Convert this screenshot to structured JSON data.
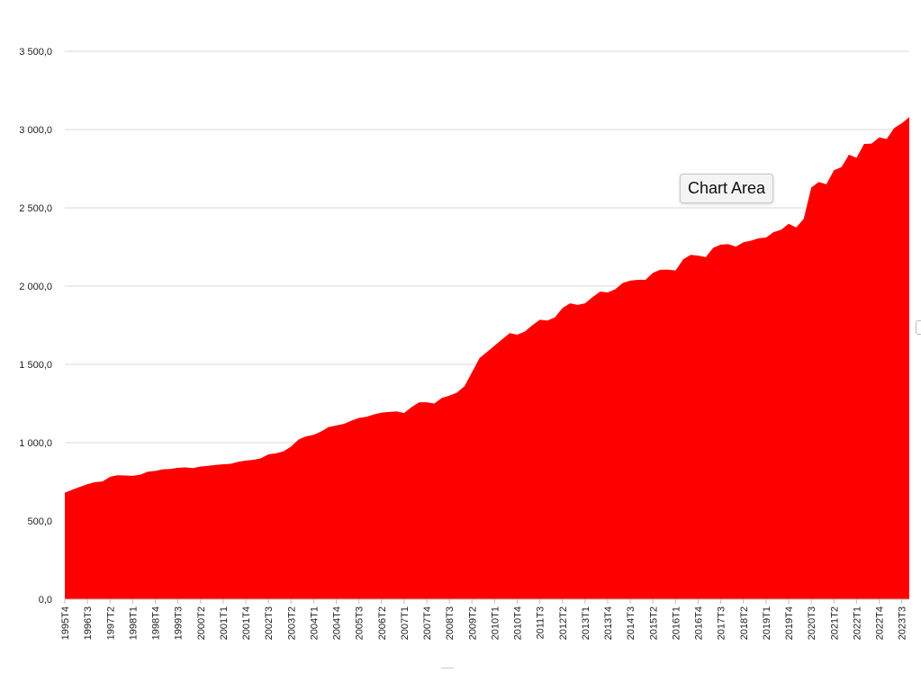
{
  "tooltip": {
    "label": "Chart Area"
  },
  "colors": {
    "area": "#ff0000",
    "grid": "#d9d9d9",
    "axis": "#bfbfbf"
  },
  "chart_data": {
    "type": "area",
    "title": "",
    "xlabel": "",
    "ylabel": "",
    "ylim": [
      0,
      3500
    ],
    "yticks": [
      0,
      500,
      1000,
      1500,
      2000,
      2500,
      3000,
      3500
    ],
    "ytick_labels": [
      "0,0",
      "500,0",
      "1 000,0",
      "1 500,0",
      "2 000,0",
      "2 500,0",
      "3 000,0",
      "3 500,0"
    ],
    "grid": true,
    "legend": "none",
    "x_tick_labels": [
      "1995T4",
      "1996T3",
      "1997T2",
      "1998T1",
      "1998T4",
      "1999T3",
      "2000T2",
      "2001T1",
      "2001T4",
      "2002T3",
      "2003T2",
      "2004T1",
      "2004T4",
      "2005T3",
      "2006T2",
      "2007T1",
      "2007T4",
      "2008T3",
      "2009T2",
      "2010T1",
      "2010T4",
      "2011T3",
      "2012T2",
      "2013T1",
      "2013T4",
      "2014T3",
      "2015T2",
      "2016T1",
      "2016T4",
      "2017T3",
      "2018T2",
      "2019T1",
      "2019T4",
      "2020T3",
      "2021T2",
      "2022T1",
      "2022T4",
      "2023T3"
    ],
    "series": [
      {
        "values": [
          680,
          700,
          718,
          735,
          748,
          752,
          782,
          792,
          790,
          788,
          795,
          815,
          820,
          830,
          832,
          840,
          842,
          838,
          848,
          852,
          858,
          862,
          865,
          878,
          886,
          890,
          900,
          925,
          932,
          945,
          975,
          1020,
          1040,
          1050,
          1072,
          1100,
          1110,
          1120,
          1140,
          1158,
          1165,
          1180,
          1192,
          1196,
          1200,
          1190,
          1228,
          1258,
          1258,
          1250,
          1286,
          1300,
          1320,
          1360,
          1450,
          1540,
          1580,
          1620,
          1660,
          1700,
          1690,
          1710,
          1750,
          1785,
          1780,
          1800,
          1860,
          1890,
          1880,
          1890,
          1930,
          1965,
          1960,
          1980,
          2020,
          2035,
          2040,
          2040,
          2085,
          2105,
          2105,
          2100,
          2170,
          2200,
          2195,
          2185,
          2245,
          2265,
          2268,
          2252,
          2280,
          2290,
          2305,
          2310,
          2345,
          2360,
          2398,
          2375,
          2430,
          2630,
          2665,
          2650,
          2740,
          2760,
          2840,
          2820,
          2908,
          2910,
          2950,
          2940,
          3010,
          3040,
          3080
        ]
      }
    ]
  }
}
